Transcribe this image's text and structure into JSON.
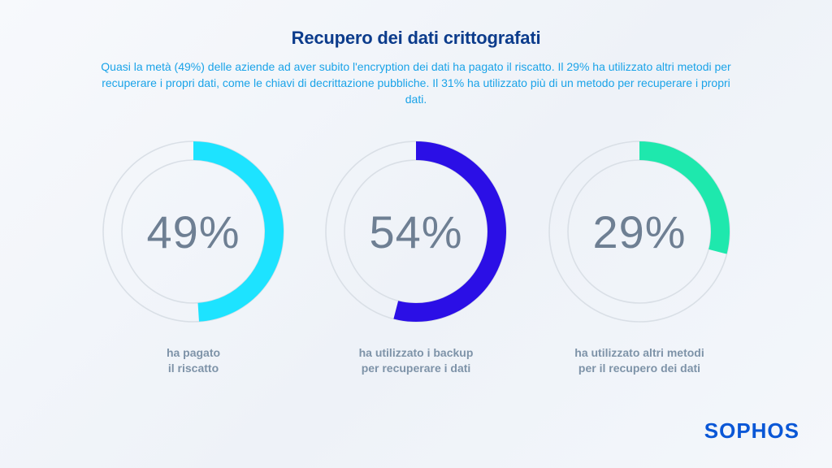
{
  "title": "Recupero dei dati crittografati",
  "subtitle": "Quasi la metà (49%) delle aziende ad aver subito l'encryption dei dati ha pagato il riscatto. Il 29% ha utilizzato altri metodi per recuperare i propri dati, come le chiavi di decrittazione pubbliche. Il 31% ha utilizzato più di un metodo per recuperare i propri dati.",
  "logo": "SOPHOS",
  "chart_data": [
    {
      "type": "pie",
      "value": 49,
      "label": "49%",
      "caption_line1": "ha pagato",
      "caption_line2": "il riscatto",
      "color": "#1de3ff"
    },
    {
      "type": "pie",
      "value": 54,
      "label": "54%",
      "caption_line1": "ha utilizzato i backup",
      "caption_line2": "per recuperare i dati",
      "color": "#2b0fe6"
    },
    {
      "type": "pie",
      "value": 29,
      "label": "29%",
      "caption_line1": "ha utilizzato altri metodi",
      "caption_line2": "per il recupero dei dati",
      "color": "#1ee8ad"
    }
  ]
}
